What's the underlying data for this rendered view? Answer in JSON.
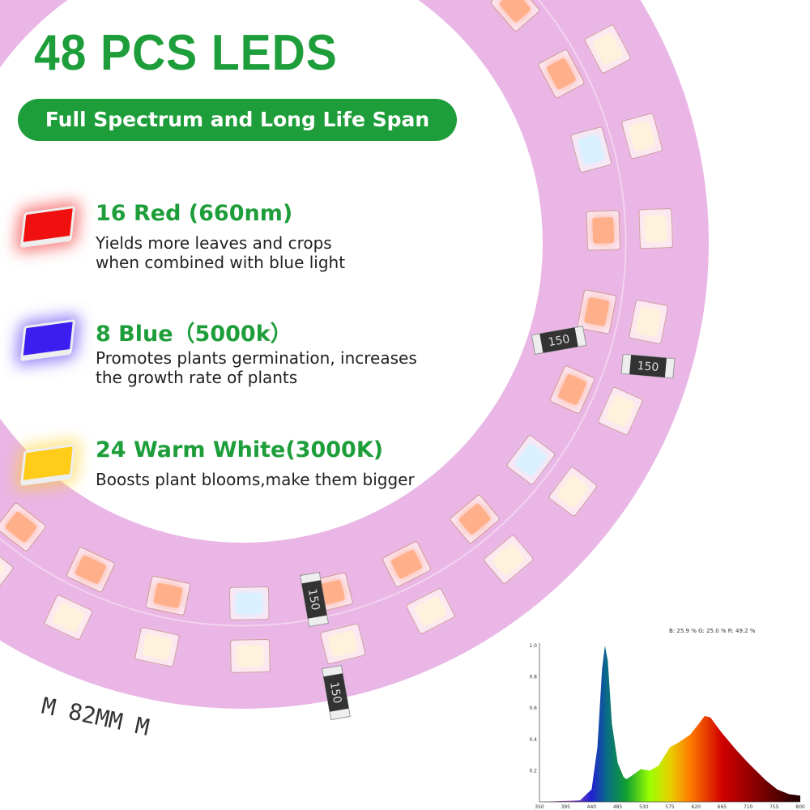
{
  "header": {
    "title": "48 PCS LEDS",
    "subtitle": "Full Spectrum and Long Life Span"
  },
  "items": [
    {
      "title": "16 Red (660nm)",
      "desc": "Yields more leaves and crops\nwhen combined with blue light",
      "color": "#f01010"
    },
    {
      "title": "8 Blue（5000k）",
      "desc": "Promotes plants germination, increases\nthe growth rate of plants",
      "color": "#3c1ef0"
    },
    {
      "title": "24 Warm White(3000K)",
      "desc": "Boosts plant blooms,make them bigger",
      "color": "#ffcc1a"
    }
  ],
  "ring": {
    "marking": "M 82MM M",
    "resistor_label": "150",
    "color": "#e9b6e6"
  },
  "chart_data": {
    "type": "area",
    "title": "B: 25.9 %  G: 25.0 %  R: 49.2 %",
    "xlabel": "",
    "ylabel": "",
    "xlim": [
      350,
      800
    ],
    "ylim": [
      0,
      1.0
    ],
    "xticks": [
      350,
      395,
      440,
      485,
      530,
      575,
      620,
      665,
      710,
      755,
      800
    ],
    "yticks": [
      0.2,
      0.4,
      0.6,
      0.8,
      1.0
    ],
    "x": [
      350,
      420,
      440,
      450,
      458,
      463,
      468,
      475,
      485,
      495,
      500,
      510,
      525,
      540,
      555,
      575,
      590,
      610,
      625,
      635,
      645,
      665,
      690,
      710,
      740,
      760,
      780,
      800
    ],
    "y": [
      0,
      0.01,
      0.08,
      0.35,
      0.85,
      1.0,
      0.9,
      0.5,
      0.25,
      0.16,
      0.145,
      0.17,
      0.21,
      0.2,
      0.23,
      0.35,
      0.38,
      0.43,
      0.5,
      0.55,
      0.54,
      0.44,
      0.33,
      0.25,
      0.14,
      0.08,
      0.05,
      0.04
    ]
  }
}
